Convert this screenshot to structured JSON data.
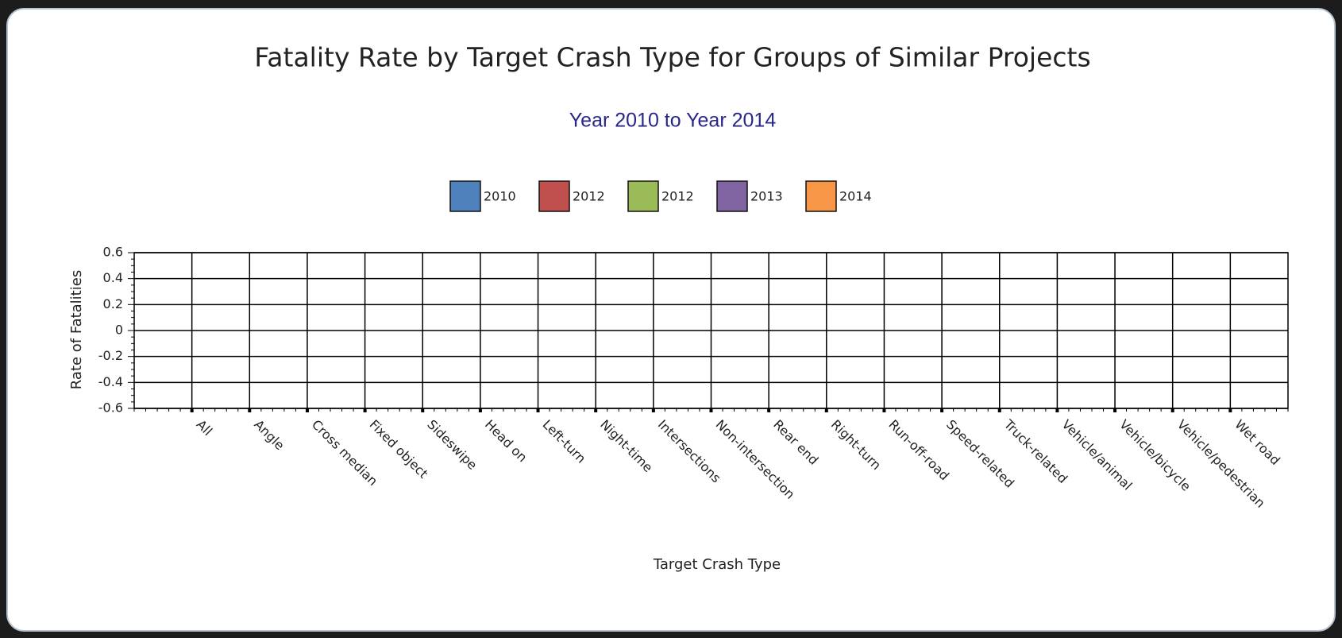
{
  "chart_data": {
    "type": "bar",
    "title": "Fatality Rate by Target Crash Type for Groups of Similar Projects",
    "subtitle": "Year 2010 to Year 2014",
    "x_label": "Target Crash Type",
    "y_label": "Rate of Fatalities",
    "categories": [
      "All",
      "Angle",
      "Cross median",
      "Fixed object",
      "Sideswipe",
      "Head on",
      "Left-turn",
      "Night-time",
      "Intersections",
      "Non-intersection",
      "Rear end",
      "Right-turn",
      "Run-off-road",
      "Speed-related",
      "Truck-related",
      "Vehicle/animal",
      "Vehicle/bicycle",
      "Vehicle/pedestrian",
      "Wet road"
    ],
    "series": [
      {
        "name": "2010",
        "color": "#4f81bd",
        "values": [
          null,
          null,
          null,
          null,
          null,
          null,
          null,
          null,
          null,
          null,
          null,
          null,
          null,
          null,
          null,
          null,
          null,
          null,
          null
        ]
      },
      {
        "name": "2012",
        "color": "#c0504d",
        "values": [
          null,
          null,
          null,
          null,
          null,
          null,
          null,
          null,
          null,
          null,
          null,
          null,
          null,
          null,
          null,
          null,
          null,
          null,
          null
        ]
      },
      {
        "name": "2012",
        "color": "#9bbb59",
        "values": [
          null,
          null,
          null,
          null,
          null,
          null,
          null,
          null,
          null,
          null,
          null,
          null,
          null,
          null,
          null,
          null,
          null,
          null,
          null
        ]
      },
      {
        "name": "2013",
        "color": "#8064a2",
        "values": [
          null,
          null,
          null,
          null,
          null,
          null,
          null,
          null,
          null,
          null,
          null,
          null,
          null,
          null,
          null,
          null,
          null,
          null,
          null
        ]
      },
      {
        "name": "2014",
        "color": "#f79646",
        "values": [
          null,
          null,
          null,
          null,
          null,
          null,
          null,
          null,
          null,
          null,
          null,
          null,
          null,
          null,
          null,
          null,
          null,
          null,
          null
        ]
      }
    ],
    "ylim": [
      -0.6,
      0.6
    ],
    "yticks": [
      -0.6,
      -0.4,
      -0.2,
      0,
      0.2,
      0.4,
      0.6
    ],
    "grid": true,
    "legend": "top"
  }
}
